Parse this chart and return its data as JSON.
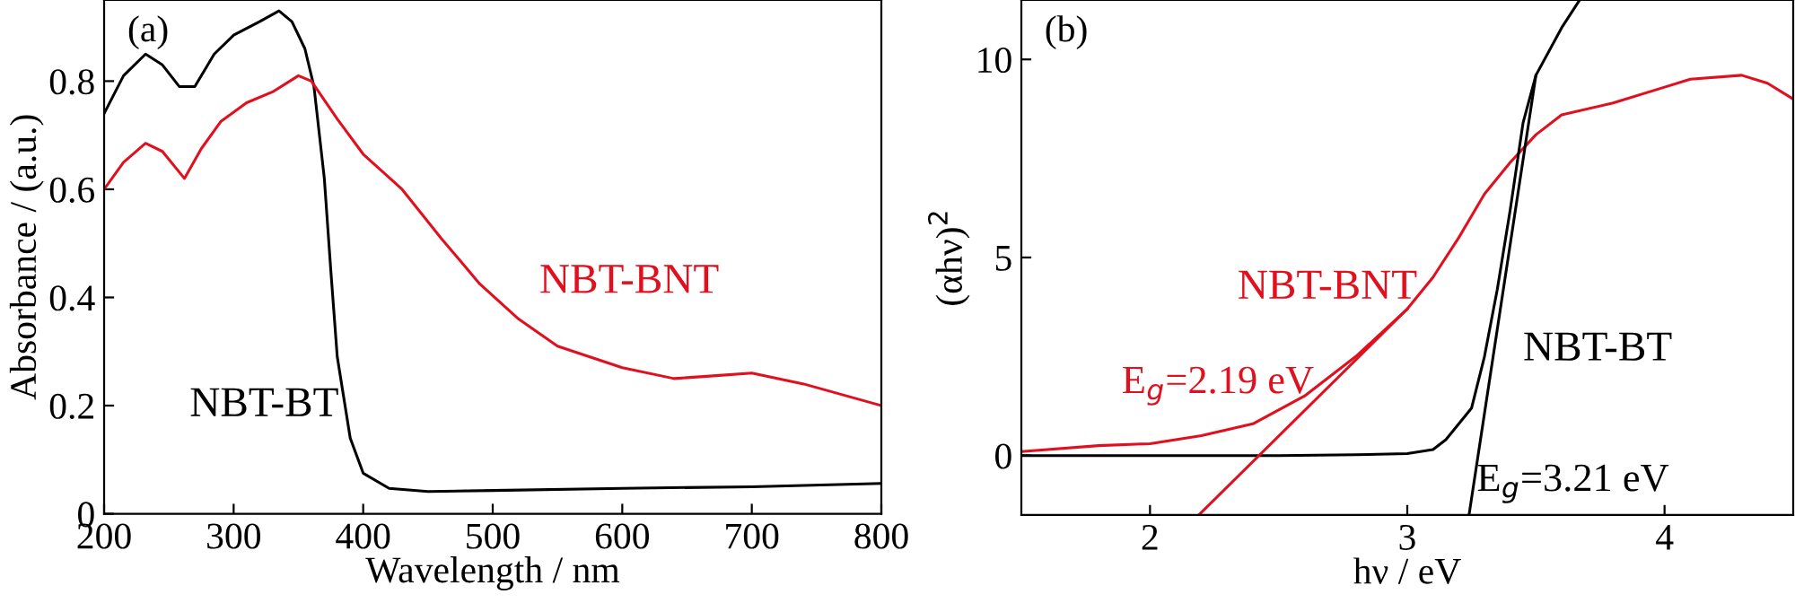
{
  "chart_data": [
    {
      "type": "line",
      "title": "(a)",
      "xlabel": "Wavelength / nm",
      "ylabel": "Absorbance / (a.u.)",
      "xlim": [
        200,
        800
      ],
      "xticks": [
        200,
        300,
        400,
        500,
        600,
        700,
        800
      ],
      "ylim": [
        0,
        0.95
      ],
      "yticks": [
        {
          "value": 0,
          "label": "0"
        },
        0.2,
        0.4,
        0.6,
        0.8
      ],
      "series": [
        {
          "name": "NBT-BT",
          "color": "#000000",
          "x": [
            200,
            215,
            232,
            245,
            258,
            270,
            285,
            300,
            320,
            335,
            345,
            355,
            362,
            370,
            375,
            380,
            390,
            400,
            420,
            450,
            500,
            600,
            700,
            800
          ],
          "values": [
            0.74,
            0.81,
            0.85,
            0.83,
            0.79,
            0.79,
            0.85,
            0.885,
            0.91,
            0.93,
            0.91,
            0.86,
            0.79,
            0.62,
            0.45,
            0.29,
            0.14,
            0.075,
            0.047,
            0.041,
            0.043,
            0.047,
            0.05,
            0.056
          ]
        },
        {
          "name": "NBT-BNT",
          "color": "#e0101e",
          "x": [
            200,
            215,
            232,
            245,
            262,
            275,
            290,
            310,
            330,
            350,
            360,
            380,
            400,
            430,
            460,
            490,
            520,
            550,
            600,
            640,
            670,
            700,
            740,
            800
          ],
          "values": [
            0.6,
            0.65,
            0.685,
            0.67,
            0.62,
            0.675,
            0.725,
            0.76,
            0.78,
            0.81,
            0.8,
            0.73,
            0.665,
            0.6,
            0.51,
            0.425,
            0.36,
            0.31,
            0.27,
            0.25,
            0.255,
            0.26,
            0.24,
            0.2
          ]
        }
      ]
    },
    {
      "type": "line",
      "title": "(b)",
      "xlabel": "hν / eV",
      "ylabel": "(αhν)$^{2}$",
      "xlim": [
        1.5,
        4.5
      ],
      "xticks": [
        2,
        3,
        4
      ],
      "ylim": [
        -1.5,
        11.5
      ],
      "yticks": [
        0,
        5,
        10
      ],
      "annotations": [
        "E$_{g}$=2.19 eV",
        "E$_{g}$=3.21 eV"
      ],
      "series": [
        {
          "name": "NBT-BNT",
          "color": "#e0101e",
          "x": [
            1.5,
            1.8,
            2.0,
            2.2,
            2.4,
            2.6,
            2.8,
            3.0,
            3.1,
            3.2,
            3.3,
            3.4,
            3.5,
            3.6,
            3.8,
            4.0,
            4.1,
            4.3,
            4.4,
            4.5
          ],
          "values": [
            0.1,
            0.25,
            0.3,
            0.5,
            0.8,
            1.5,
            2.5,
            3.7,
            4.5,
            5.5,
            6.6,
            7.4,
            8.1,
            8.6,
            8.9,
            9.3,
            9.5,
            9.6,
            9.4,
            9.0
          ]
        },
        {
          "name": "NBT-BT",
          "color": "#000000",
          "x": [
            1.5,
            2.0,
            2.5,
            2.8,
            3.0,
            3.1,
            3.15,
            3.25,
            3.3,
            3.35,
            3.4,
            3.45,
            3.5,
            3.6,
            3.67
          ],
          "values": [
            0,
            0,
            0,
            0.02,
            0.05,
            0.15,
            0.4,
            1.2,
            2.5,
            4.2,
            6.2,
            8.4,
            9.6,
            10.8,
            11.5
          ]
        },
        {
          "color": "#e0101e",
          "x": [
            2.19,
            3.0
          ],
          "values": [
            -1.5,
            3.7
          ]
        },
        {
          "color": "#000000",
          "x": [
            3.24,
            3.5
          ],
          "values": [
            -1.5,
            9.6
          ]
        }
      ]
    }
  ]
}
